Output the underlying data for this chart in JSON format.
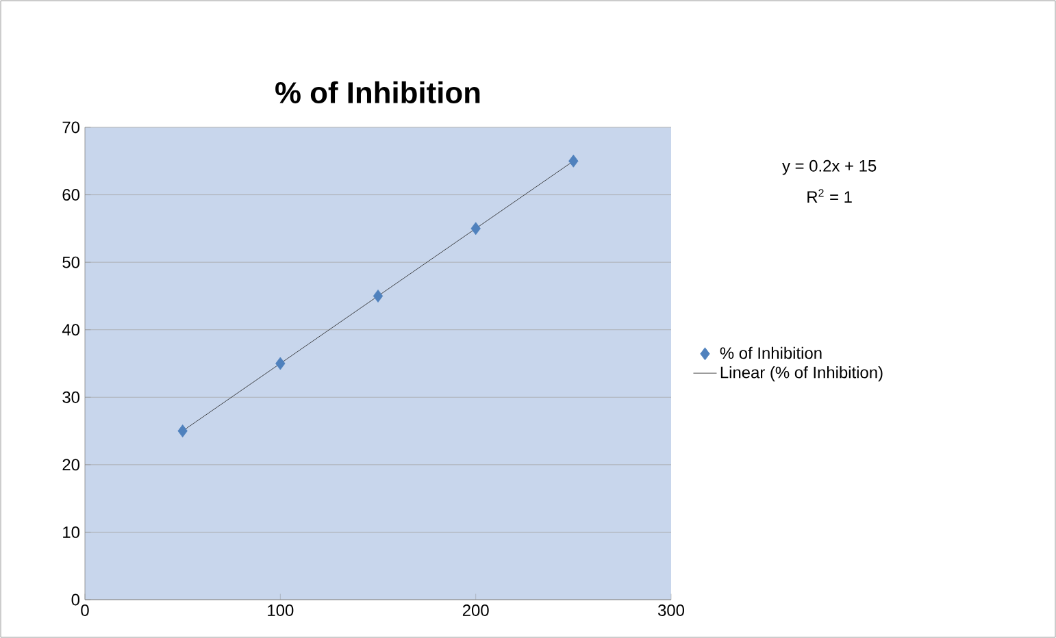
{
  "chart_data": {
    "type": "scatter",
    "title": "% of Inhibition",
    "xlim": [
      0,
      300
    ],
    "xticks": [
      0,
      100,
      200,
      300
    ],
    "ylim": [
      0,
      70
    ],
    "yticks": [
      0,
      10,
      20,
      30,
      40,
      50,
      60,
      70
    ],
    "grid": "y",
    "legend": "right",
    "annotations": [
      "y = 0.2x + 15",
      "R$^{2}$ = 1"
    ],
    "series": [
      {
        "name": "% of Inhibition",
        "marker": "diamond",
        "color": "#4f81bd",
        "x": [
          50,
          100,
          150,
          200,
          250
        ],
        "values": [
          25,
          35,
          45,
          55,
          65
        ]
      },
      {
        "name": "Linear (% of Inhibition)",
        "type": "line",
        "marker": "none",
        "color": "#1f1f1f",
        "x": [
          50,
          250
        ],
        "values": [
          25,
          65
        ]
      }
    ]
  }
}
